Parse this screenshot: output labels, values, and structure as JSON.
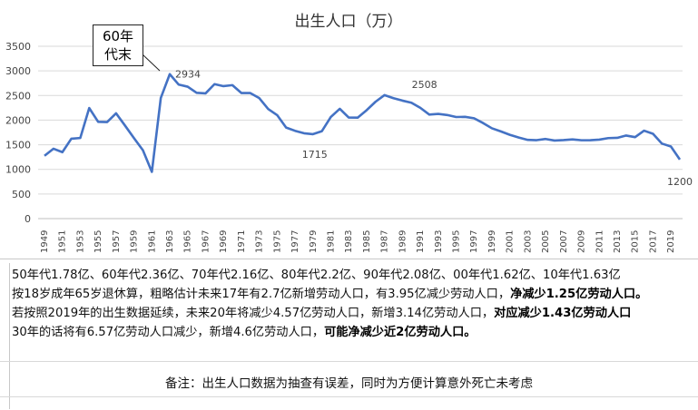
{
  "chart_data": {
    "type": "line",
    "title": "出生人口（万）",
    "x": [
      1949,
      1950,
      1951,
      1952,
      1953,
      1954,
      1955,
      1956,
      1957,
      1958,
      1959,
      1960,
      1961,
      1962,
      1963,
      1964,
      1965,
      1966,
      1967,
      1968,
      1969,
      1970,
      1971,
      1972,
      1973,
      1974,
      1975,
      1976,
      1977,
      1978,
      1979,
      1980,
      1981,
      1982,
      1983,
      1984,
      1985,
      1986,
      1987,
      1988,
      1989,
      1990,
      1991,
      1992,
      1993,
      1994,
      1995,
      1996,
      1997,
      1998,
      1999,
      2000,
      2001,
      2002,
      2003,
      2004,
      2005,
      2006,
      2007,
      2008,
      2009,
      2010,
      2011,
      2012,
      2013,
      2014,
      2015,
      2016,
      2017,
      2018,
      2019,
      2020
    ],
    "values": [
      1275,
      1419,
      1349,
      1622,
      1637,
      2245,
      1965,
      1961,
      2138,
      1889,
      1635,
      1389,
      949,
      2451,
      2934,
      2721,
      2679,
      2554,
      2543,
      2731,
      2690,
      2710,
      2551,
      2550,
      2447,
      2226,
      2102,
      1849,
      1783,
      1733,
      1715,
      1776,
      2064,
      2230,
      2052,
      2050,
      2202,
      2374,
      2508,
      2445,
      2396,
      2354,
      2250,
      2113,
      2126,
      2104,
      2063,
      2067,
      2038,
      1942,
      1834,
      1771,
      1702,
      1647,
      1599,
      1593,
      1617,
      1585,
      1594,
      1608,
      1591,
      1592,
      1604,
      1635,
      1640,
      1687,
      1655,
      1786,
      1723,
      1523,
      1465,
      1200
    ],
    "ylim": [
      0,
      3500
    ],
    "yticks": [
      0,
      500,
      1000,
      1500,
      2000,
      2500,
      3000,
      3500
    ],
    "xticks": [
      1949,
      1951,
      1953,
      1955,
      1957,
      1959,
      1961,
      1963,
      1965,
      1967,
      1969,
      1971,
      1973,
      1975,
      1977,
      1979,
      1981,
      1983,
      1985,
      1987,
      1989,
      1991,
      1993,
      1995,
      1997,
      1999,
      2001,
      2003,
      2005,
      2007,
      2009,
      2011,
      2013,
      2015,
      2017,
      2019
    ],
    "data_labels": [
      {
        "year": 1963,
        "text": "2934"
      },
      {
        "year": 1979,
        "text": "1715"
      },
      {
        "year": 1987,
        "text": "2508"
      },
      {
        "year": 2020,
        "text": "1200"
      }
    ],
    "annotation": {
      "line1": "60年",
      "line2": "代末"
    },
    "grid": true,
    "line_color": "#4472c4"
  },
  "summary": {
    "line1": "50年代1.78亿、60年代2.36亿、70年代2.16亿、80年代2.2亿、90年代2.08亿、00年代1.62亿、10年代1.63亿",
    "line2_plain": "按18岁成年65岁退休算，粗略估计未来17年有2.7亿新增劳动人口，有3.95亿减少劳动人口，",
    "line2_bold": "净减少1.25亿劳动人口。",
    "line3_plain": "若按照2019年的出生数据延续，未来20年将减少4.57亿劳动人口，新增3.14亿劳动人口，",
    "line3_bold": "对应减少1.43亿劳动人口",
    "line4_plain": "30年的话将有6.57亿劳动人口减少，新增4.6亿劳动人口，",
    "line4_bold": "可能净减少近2亿劳动人口。"
  },
  "note": "备注：出生人口数据为抽查有误差，同时为方便计算意外死亡未考虑"
}
